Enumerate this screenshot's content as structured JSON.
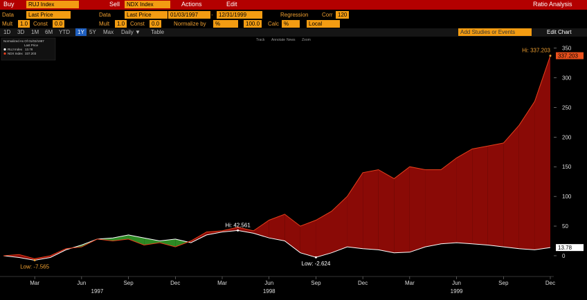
{
  "toolbar": {
    "buy": "Buy",
    "buy_ticker": "RUJ Index",
    "sell": "Sell",
    "sell_ticker": "NDX Index",
    "actions": "Actions",
    "edit": "Edit",
    "title": "Ratio Analysis"
  },
  "settings": {
    "data1": "Data",
    "price1": "Last Price",
    "data2": "Data",
    "price2": "Last Price",
    "start": "01/03/1997",
    "dash": "-",
    "end": "12/31/1999",
    "regression": "Regression",
    "corr": "Corr",
    "corr_value": "120"
  },
  "params": {
    "mult1": "Mult",
    "mult1_value": "1.0",
    "const1": "Const",
    "const1_value": "0.0",
    "mult2": "Mult",
    "mult2_value": "1.0",
    "const2": "Const",
    "const2_value": "0.0",
    "normalize": "Normalize by",
    "normalize_unit": "%",
    "normalize_value": "100.0",
    "calc": "Calc",
    "calc_unit": "%",
    "calc_mode": "Local"
  },
  "periods": {
    "items": [
      "1D",
      "3D",
      "1M",
      "6M",
      "YTD",
      "1Y",
      "5Y",
      "Max"
    ],
    "selected": "1Y",
    "frequency": "Daily ▼",
    "table": "Table",
    "studies": "Add Studies or Events",
    "edit_chart": "Edit Chart"
  },
  "chart_tools": [
    "Track",
    "Annotate",
    "News",
    "Zoom"
  ],
  "chart_data": {
    "type": "line",
    "legend_title": "Normalized As Of 01/03/1997",
    "legend_subtitle": "Last Price",
    "x": [
      "1997-01",
      "1997-02",
      "1997-03",
      "1997-04",
      "1997-05",
      "1997-06",
      "1997-07",
      "1997-08",
      "1997-09",
      "1997-10",
      "1997-11",
      "1997-12",
      "1998-01",
      "1998-02",
      "1998-03",
      "1998-04",
      "1998-05",
      "1998-06",
      "1998-07",
      "1998-08",
      "1998-09",
      "1998-10",
      "1998-11",
      "1998-12",
      "1999-01",
      "1999-02",
      "1999-03",
      "1999-04",
      "1999-05",
      "1999-06",
      "1999-07",
      "1999-08",
      "1999-09",
      "1999-10",
      "1999-11",
      "1999-12"
    ],
    "series": [
      {
        "name": "RUJ Index",
        "color": "#ffffff",
        "values": [
          0,
          -3,
          -7.565,
          -3,
          10,
          18,
          28,
          30,
          35,
          30,
          25,
          28,
          22,
          35,
          40,
          42.561,
          38,
          30,
          25,
          5,
          -2.624,
          5,
          15,
          12,
          10,
          5,
          6,
          15,
          20,
          22,
          20,
          18,
          15,
          12,
          10,
          13.78
        ]
      },
      {
        "name": "NDX Index",
        "color": "#e8401c",
        "values": [
          0,
          2,
          -5,
          0,
          12,
          15,
          28,
          25,
          28,
          18,
          22,
          15,
          25,
          40,
          42,
          48,
          42,
          60,
          70,
          50,
          60,
          75,
          100,
          140,
          145,
          130,
          150,
          145,
          145,
          165,
          180,
          185,
          190,
          220,
          260,
          337.203
        ]
      }
    ],
    "fill_above_color": "#8a0a06",
    "fill_below_color": "#2d8a24",
    "xlim": [
      "1997-01",
      "1999-12"
    ],
    "xticks": [
      {
        "value": "1997-03",
        "label": "Mar"
      },
      {
        "value": "1997-06",
        "label": "Jun"
      },
      {
        "value": "1997-09",
        "label": "Sep"
      },
      {
        "value": "1997-12",
        "label": "Dec"
      },
      {
        "value": "1998-03",
        "label": "Mar"
      },
      {
        "value": "1998-06",
        "label": "Jun"
      },
      {
        "value": "1998-09",
        "label": "Sep"
      },
      {
        "value": "1998-12",
        "label": "Dec"
      },
      {
        "value": "1999-03",
        "label": "Mar"
      },
      {
        "value": "1999-06",
        "label": "Jun"
      },
      {
        "value": "1999-09",
        "label": "Sep"
      },
      {
        "value": "1999-12",
        "label": "Dec"
      }
    ],
    "year_labels": [
      {
        "value": "1997-07",
        "label": "1997"
      },
      {
        "value": "1998-06",
        "label": "1998"
      },
      {
        "value": "1999-06",
        "label": "1999"
      }
    ],
    "ylim": [
      -35,
      367
    ],
    "yticks": [
      0,
      50,
      100,
      150,
      200,
      250,
      300,
      350
    ],
    "annotations": [
      {
        "text": "Hi: 42.561",
        "x": "1998-04",
        "y": 42.561,
        "color": "#ffffff"
      },
      {
        "text": "Low: -7.565",
        "x": "1997-03",
        "y": -7.565,
        "color": "#f0a030"
      },
      {
        "text": "Low: -2.624",
        "x": "1998-09",
        "y": -2.624,
        "color": "#ffffff"
      },
      {
        "text": "Hi: 337.203",
        "x": "1999-12",
        "y": 337.203,
        "color": "#f0a030"
      }
    ]
  }
}
